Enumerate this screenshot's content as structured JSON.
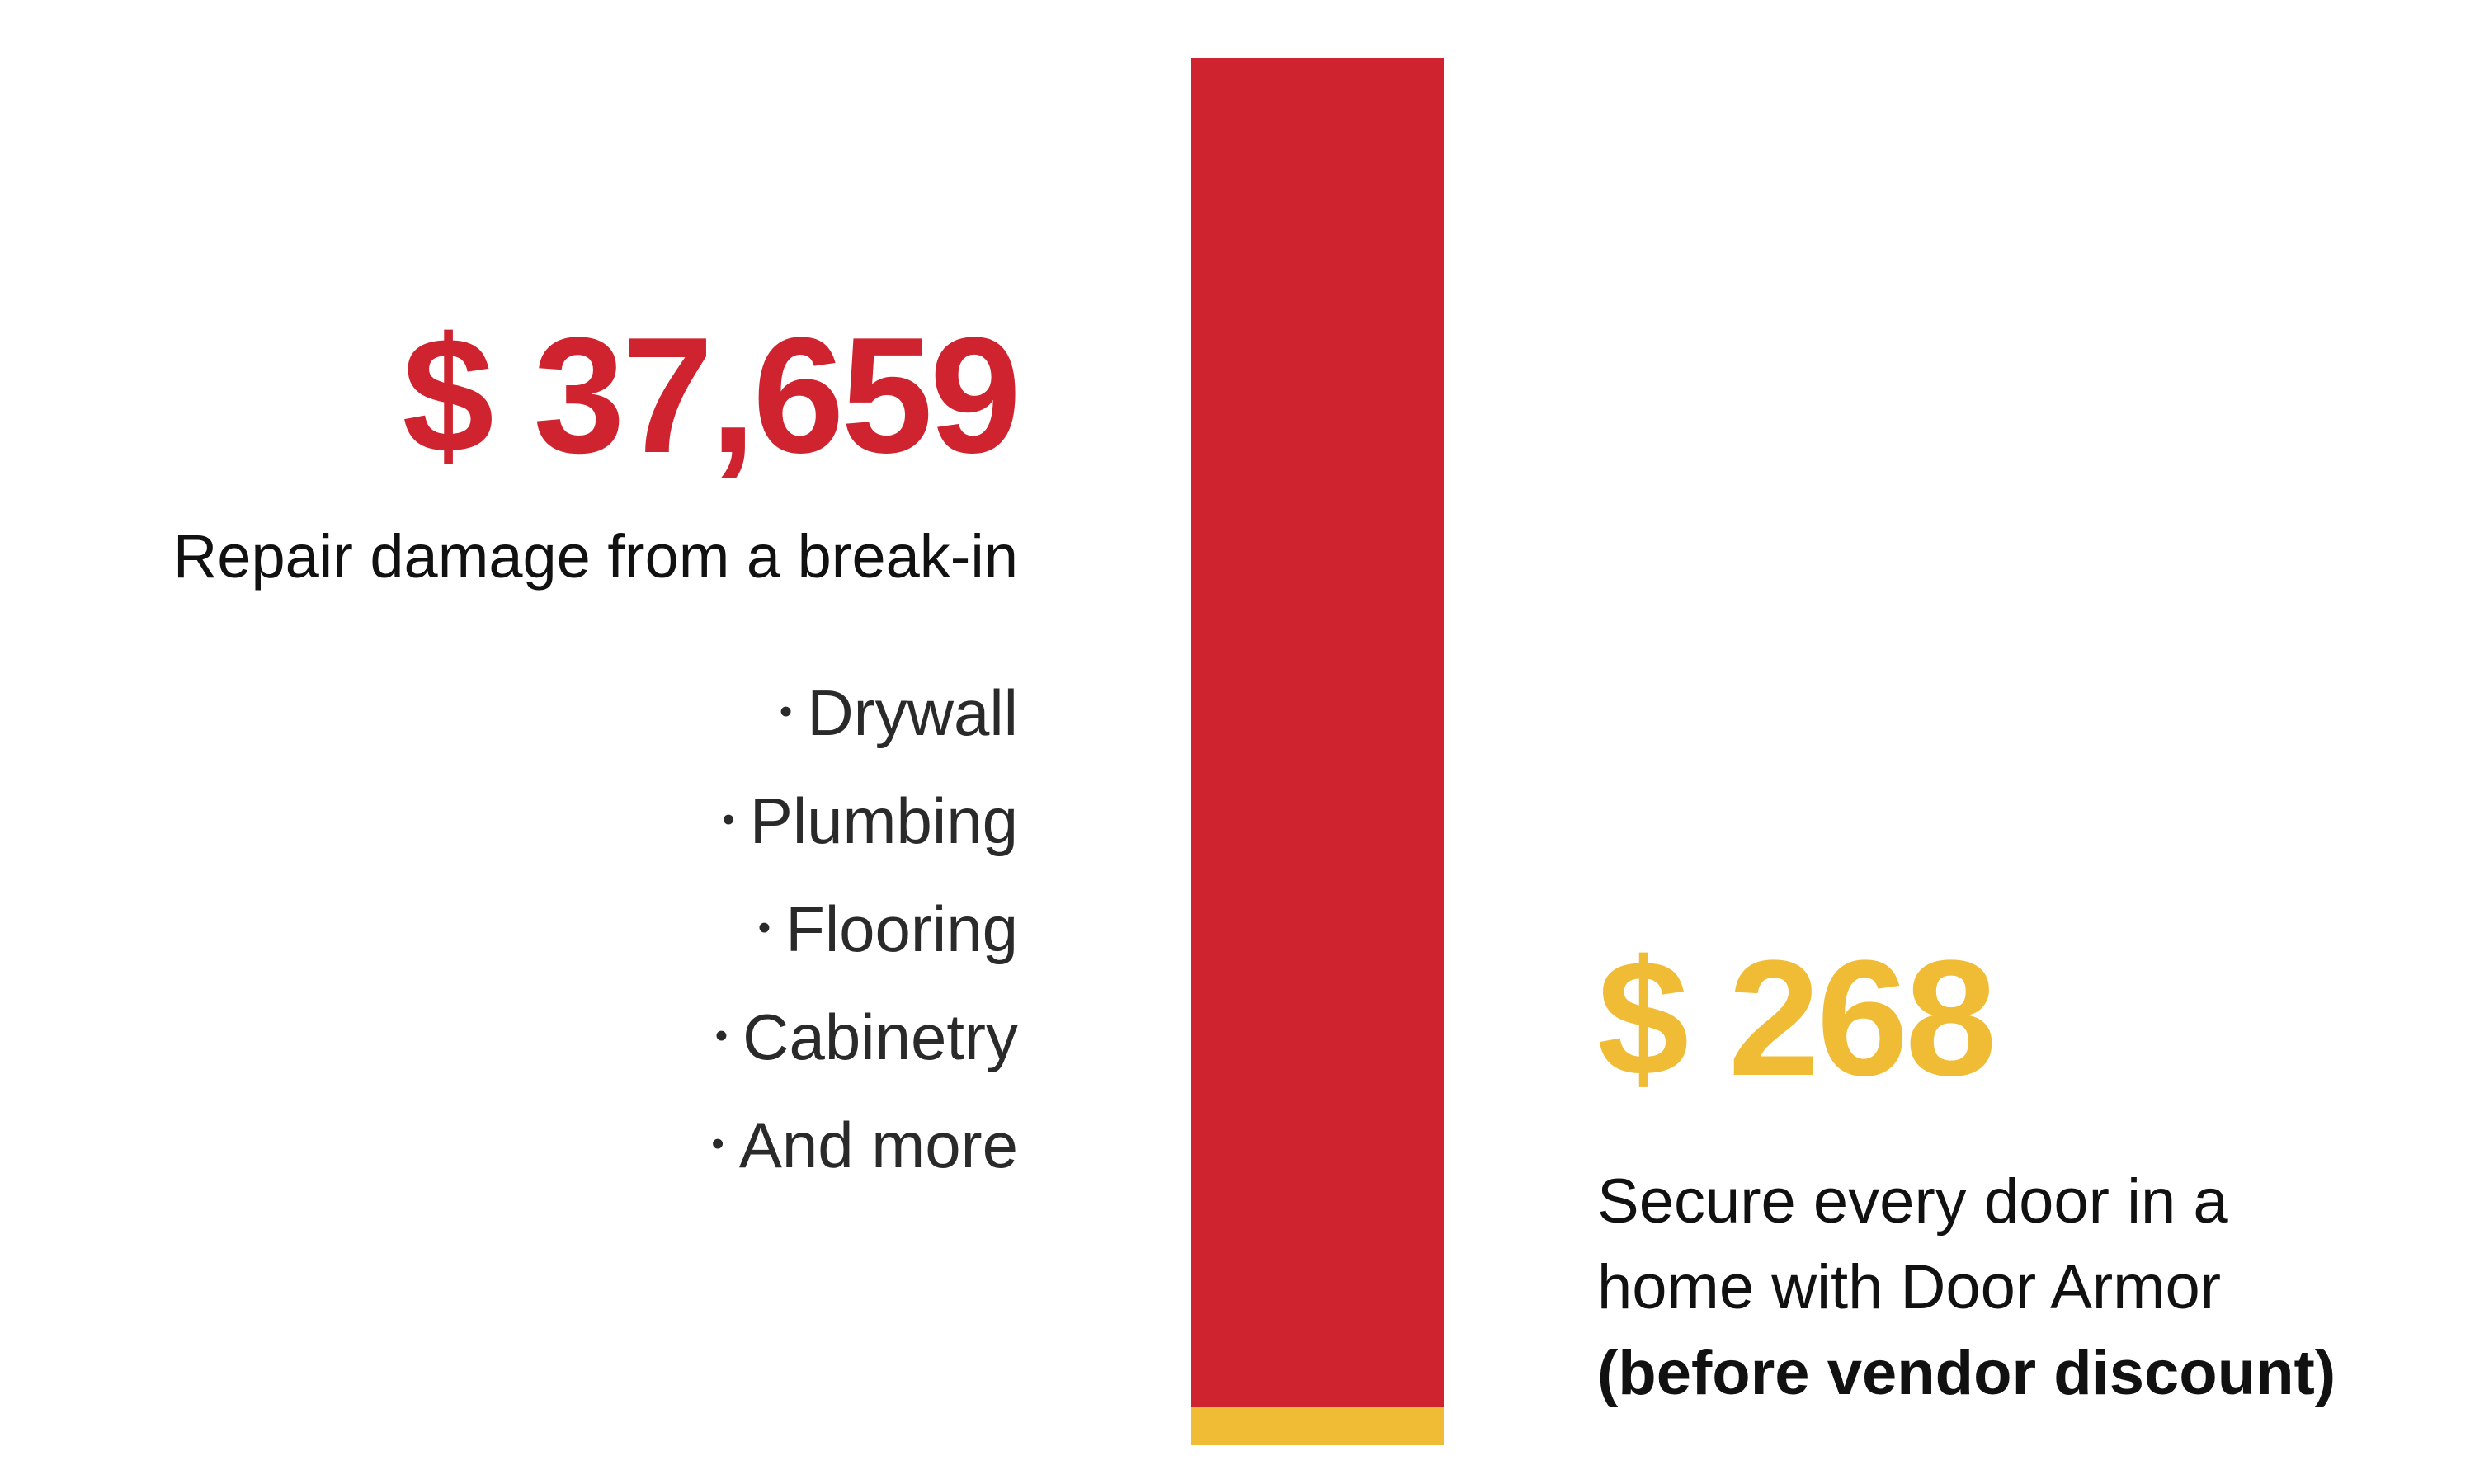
{
  "chart_data": {
    "type": "bar",
    "stacked": true,
    "categories": [
      ""
    ],
    "series": [
      {
        "values": [
          37659
        ],
        "color": "#cf242f"
      },
      {
        "values": [
          268
        ],
        "color": "#f0bb35"
      }
    ]
  },
  "repair": {
    "amount": "$ 37,659",
    "caption": "Repair damage from a break-in",
    "items": [
      "Drywall",
      "Plumbing",
      "Flooring",
      "Cabinetry",
      "And more"
    ]
  },
  "door_armor": {
    "amount": "$ 268",
    "caption_line1": "Secure every door in a",
    "caption_line2": "home with Door Armor",
    "caption_bold": "(before vendor discount)"
  },
  "colors": {
    "repair": "#cf242f",
    "door_armor": "#f0bb35"
  }
}
